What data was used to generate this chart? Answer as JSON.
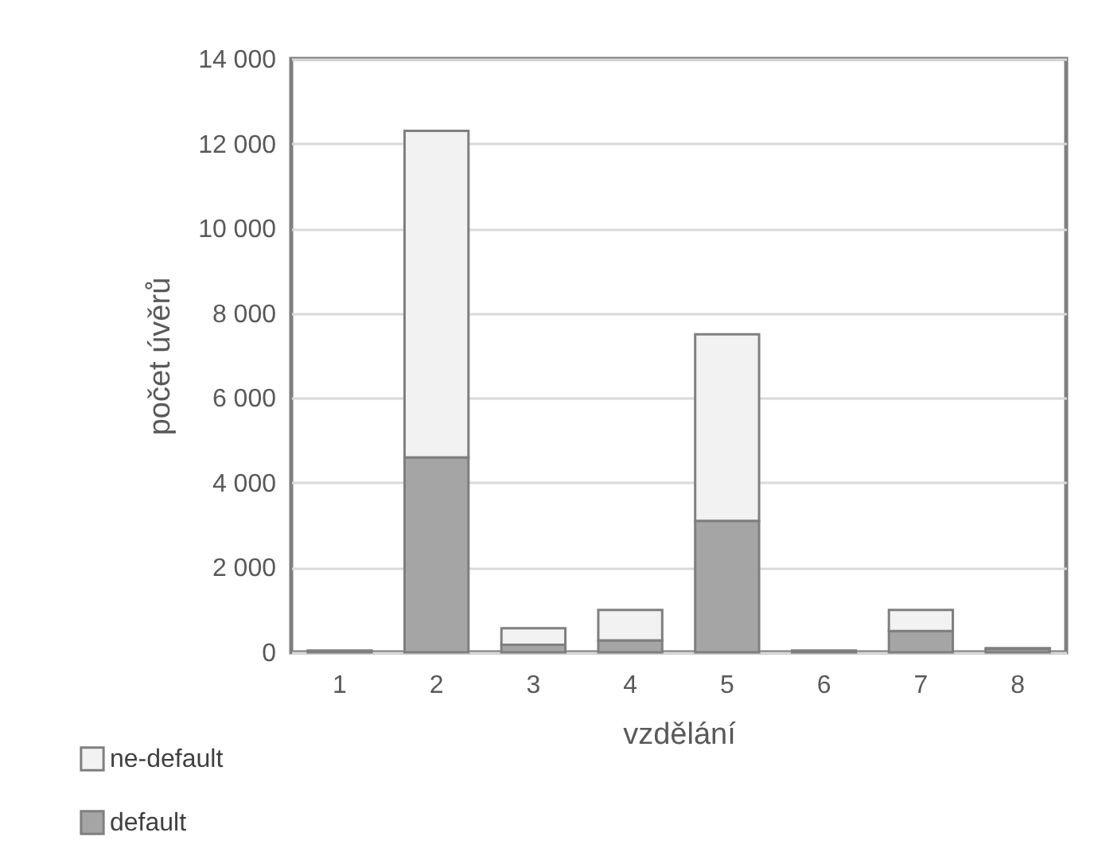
{
  "chart_data": {
    "type": "bar",
    "xlabel": "vzdělání",
    "ylabel": "počet úvěrů",
    "categories": [
      "1",
      "2",
      "3",
      "4",
      "5",
      "6",
      "7",
      "8"
    ],
    "stacked": true,
    "series": [
      {
        "name": "default",
        "color": "#a5a5a5",
        "values": [
          40,
          4600,
          180,
          280,
          3100,
          40,
          500,
          80
        ]
      },
      {
        "name": "ne-default",
        "color": "#f2f2f2",
        "values": [
          null,
          7700,
          390,
          720,
          4400,
          null,
          500,
          20
        ]
      }
    ],
    "ylim": [
      0,
      14000
    ],
    "yticks": [
      0,
      {
        "value": 2000,
        "label": "2 000"
      },
      {
        "value": 4000,
        "label": "4 000"
      },
      {
        "value": 6000,
        "label": "6 000"
      },
      {
        "value": 8000,
        "label": "8 000"
      },
      {
        "value": 10000,
        "label": "10 000"
      },
      {
        "value": 12000,
        "label": "12 000"
      },
      {
        "value": 14000,
        "label": "14 000"
      }
    ],
    "grid": "y",
    "legend": "bottom left"
  }
}
